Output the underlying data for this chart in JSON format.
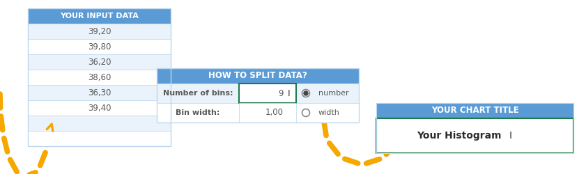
{
  "bg_color": "#ffffff",
  "header_blue": "#5B9BD5",
  "header_text_color": "#ffffff",
  "cell_bg": "#ffffff",
  "cell_alt_bg": "#EAF3FB",
  "cell_border": "#BDD7EE",
  "data_text_color": "#595959",
  "table1_title": "YOUR INPUT DATA",
  "table1_rows": [
    "39,20",
    "39,80",
    "36,20",
    "38,60",
    "36,30",
    "39,40",
    "",
    ""
  ],
  "table2_title": "HOW TO SPLIT DATA?",
  "table2_labels": [
    "Number of bins:",
    "Bin width:"
  ],
  "table2_values": [
    "9",
    "1,00"
  ],
  "table2_opts": [
    "number",
    "width"
  ],
  "table3_title": "YOUR CHART TITLE",
  "table3_value": "Your Histogram",
  "arrow_color": "#F5A800",
  "green_border": "#1F7A4A",
  "cursor_color": "#333333"
}
